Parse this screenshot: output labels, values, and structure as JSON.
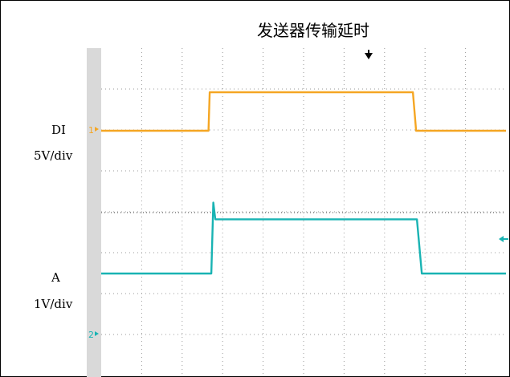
{
  "title": "发送器传输延时",
  "channels": [
    {
      "name": "DI",
      "scale": "5V/div",
      "marker": "1"
    },
    {
      "name": "A",
      "scale": "1V/div",
      "marker": "2"
    }
  ],
  "chart_data": {
    "type": "line",
    "title": "发送器传输延时",
    "grid": true,
    "series": [
      {
        "name": "DI",
        "color": "#f5a623",
        "points": [
          [
            0,
            0.0
          ],
          [
            2.65,
            0.0
          ],
          [
            2.68,
            1.0
          ],
          [
            7.7,
            1.0
          ],
          [
            7.78,
            0.0
          ],
          [
            10.0,
            0.0
          ]
        ]
      },
      {
        "name": "A",
        "color": "#19b3b3",
        "points": [
          [
            0,
            0.0
          ],
          [
            2.72,
            0.0
          ],
          [
            2.77,
            1.7
          ],
          [
            2.82,
            1.3
          ],
          [
            7.8,
            1.3
          ],
          [
            7.92,
            0.0
          ],
          [
            10.0,
            0.0
          ]
        ]
      }
    ]
  }
}
